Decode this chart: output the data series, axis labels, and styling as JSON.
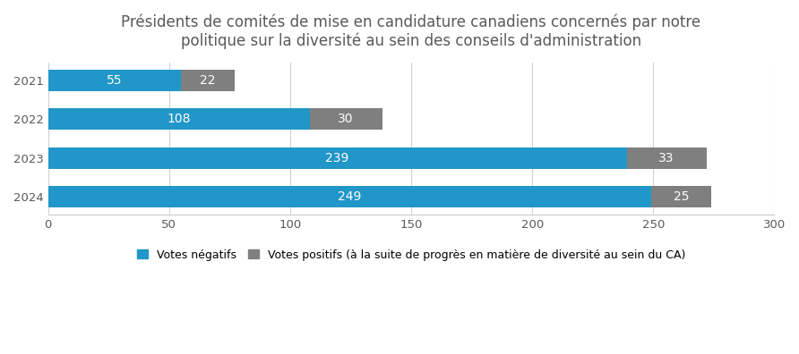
{
  "title": "Présidents de comités de mise en candidature canadiens concernés par notre\npolitique sur la diversité au sein des conseils d'administration",
  "years": [
    "2021",
    "2022",
    "2023",
    "2024"
  ],
  "votes_negatifs": [
    55,
    108,
    239,
    249
  ],
  "votes_positifs": [
    22,
    30,
    33,
    25
  ],
  "color_negatifs": "#2196C8",
  "color_positifs": "#7F7F7F",
  "xlim": [
    0,
    300
  ],
  "xticks": [
    0,
    50,
    100,
    150,
    200,
    250,
    300
  ],
  "legend_negatifs": "Votes négatifs",
  "legend_positifs": "Votes positifs (à la suite de progrès en matière de diversité au sein du CA)",
  "bar_height": 0.55,
  "background_color": "#ffffff",
  "label_fontsize": 10,
  "title_fontsize": 12,
  "tick_fontsize": 9.5,
  "title_color": "#595959",
  "tick_color": "#595959"
}
